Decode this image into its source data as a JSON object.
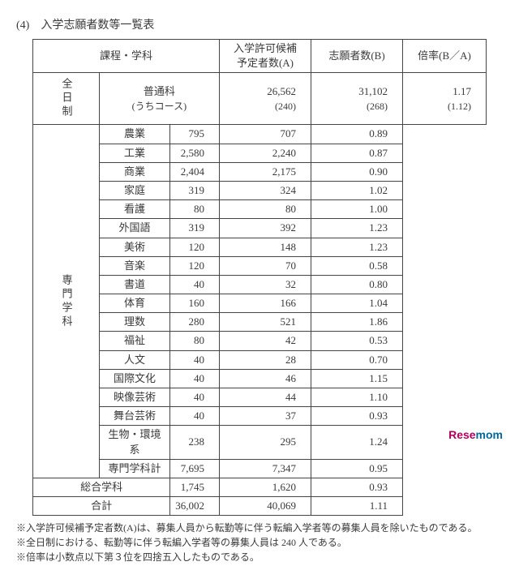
{
  "title": "(4)　入学志願者数等一覧表",
  "hdr": {
    "c1": "課程・学科",
    "c2": "入学許可候補\n予定者数(A)",
    "c3": "志願者数(B)",
    "c4": "倍率(B／A)"
  },
  "futsuu": {
    "label": "普通科",
    "sub": "(うちコース)",
    "a": "26,562",
    "as": "(240)",
    "b": "31,102",
    "bs": "(268)",
    "r": "1.17",
    "rs": "(1.12)"
  },
  "side1": "全日制",
  "side2": "専門学科",
  "rows": [
    {
      "n": "農業",
      "a": "795",
      "b": "707",
      "r": "0.89"
    },
    {
      "n": "工業",
      "a": "2,580",
      "b": "2,240",
      "r": "0.87"
    },
    {
      "n": "商業",
      "a": "2,404",
      "b": "2,175",
      "r": "0.90"
    },
    {
      "n": "家庭",
      "a": "319",
      "b": "324",
      "r": "1.02"
    },
    {
      "n": "看護",
      "a": "80",
      "b": "80",
      "r": "1.00"
    },
    {
      "n": "外国語",
      "a": "319",
      "b": "392",
      "r": "1.23"
    },
    {
      "n": "美術",
      "a": "120",
      "b": "148",
      "r": "1.23"
    },
    {
      "n": "音楽",
      "a": "120",
      "b": "70",
      "r": "0.58"
    },
    {
      "n": "書道",
      "a": "40",
      "b": "32",
      "r": "0.80"
    },
    {
      "n": "体育",
      "a": "160",
      "b": "166",
      "r": "1.04"
    },
    {
      "n": "理数",
      "a": "280",
      "b": "521",
      "r": "1.86"
    },
    {
      "n": "福祉",
      "a": "80",
      "b": "42",
      "r": "0.53"
    },
    {
      "n": "人文",
      "a": "40",
      "b": "28",
      "r": "0.70"
    },
    {
      "n": "国際文化",
      "a": "40",
      "b": "46",
      "r": "1.15"
    },
    {
      "n": "映像芸術",
      "a": "40",
      "b": "44",
      "r": "1.10"
    },
    {
      "n": "舞台芸術",
      "a": "40",
      "b": "37",
      "r": "0.93"
    },
    {
      "n": "生物・環境系",
      "a": "238",
      "b": "295",
      "r": "1.24"
    }
  ],
  "senmonkei": {
    "n": "専門学科計",
    "a": "7,695",
    "b": "7,347",
    "r": "0.95"
  },
  "sougou": {
    "n": "総合学科",
    "a": "1,745",
    "b": "1,620",
    "r": "0.93"
  },
  "goukei": {
    "n": "合計",
    "a": "36,002",
    "b": "40,069",
    "r": "1.11"
  },
  "notes": [
    "※入学許可候補予定者数(A)は、募集人員から転勤等に伴う転編入学者等の募集人員を除いたものである。",
    "※全日制における、転勤等に伴う転編入学者等の募集人員は 240 人である。",
    "※倍率は小数点以下第３位を四捨五入したものである。"
  ],
  "logo": {
    "a": "Rese",
    "b": "mom"
  }
}
